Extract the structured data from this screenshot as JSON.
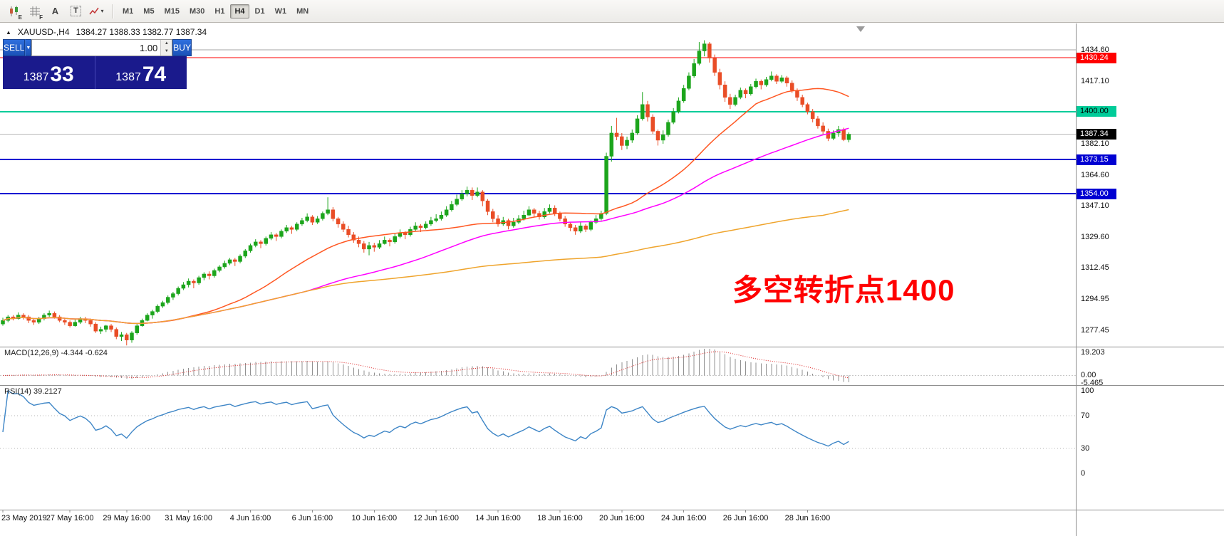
{
  "toolbar": {
    "icons": [
      {
        "name": "candlestick-chart-icon",
        "badge": "E"
      },
      {
        "name": "grid-icon",
        "badge": "F"
      },
      {
        "name": "cursor-tool-icon",
        "glyph": "A"
      },
      {
        "name": "text-tool-icon",
        "glyph": "T"
      },
      {
        "name": "indicators-dropdown-icon",
        "caret": "▾"
      }
    ],
    "timeframes": [
      "M1",
      "M5",
      "M15",
      "M30",
      "H1",
      "H4",
      "D1",
      "W1",
      "MN"
    ],
    "active_timeframe": "H4"
  },
  "symbol_bar": {
    "arrow": "▲",
    "title": "XAUUSD-,H4",
    "ohlc": "1384.27 1388.33 1382.77 1387.34"
  },
  "trade_panel": {
    "sell_label": "SELL",
    "buy_label": "BUY",
    "volume": "1.00",
    "dropdown_caret": "▼",
    "spin_up": "▲",
    "spin_down": "▼",
    "sell_price": {
      "base": "1387",
      "pips": "33"
    },
    "buy_price": {
      "base": "1387",
      "pips": "74"
    },
    "colors": {
      "button": "#1f5fce",
      "panel": "#1a1a8c"
    }
  },
  "annotation": {
    "text": "多空转折点1400",
    "color": "#ff0000"
  },
  "chart_data": {
    "type": "candlestick",
    "symbol": "XAUUSD",
    "timeframe": "H4",
    "candle_colors": {
      "bull": "#1ca51c",
      "bear": "#e94d26"
    },
    "price_axis": {
      "max": 1449.4,
      "min": 1268.3,
      "labels": [
        {
          "text": "1434.60",
          "value": 1434.6
        },
        {
          "text": "1417.10",
          "value": 1417.1
        },
        {
          "text": "1382.10",
          "value": 1382.1
        },
        {
          "text": "1364.60",
          "value": 1364.6
        },
        {
          "text": "1347.10",
          "value": 1347.1
        },
        {
          "text": "1329.60",
          "value": 1329.6
        },
        {
          "text": "1312.45",
          "value": 1312.45
        },
        {
          "text": "1294.95",
          "value": 1294.95
        },
        {
          "text": "1277.45",
          "value": 1277.45
        }
      ],
      "badges": [
        {
          "text": "1430.24",
          "value": 1430.24,
          "bg": "#ff0000",
          "fg": "#ffffff"
        },
        {
          "text": "1400.00",
          "value": 1400.0,
          "bg": "#00cc99",
          "fg": "#000000"
        },
        {
          "text": "1387.34",
          "value": 1387.34,
          "bg": "#000000",
          "fg": "#ffffff"
        },
        {
          "text": "1373.15",
          "value": 1373.15,
          "bg": "#0000d2",
          "fg": "#ffffff"
        },
        {
          "text": "1354.00",
          "value": 1354.0,
          "bg": "#0000d2",
          "fg": "#ffffff"
        }
      ]
    },
    "hlines": [
      {
        "value": 1434.6,
        "color": "#a6a6a6",
        "width": 1
      },
      {
        "value": 1430.24,
        "color": "#ff0000",
        "width": 1
      },
      {
        "value": 1400.0,
        "color": "#00cc99",
        "width": 2
      },
      {
        "value": 1387.34,
        "color": "#b9b9b9",
        "width": 1
      },
      {
        "value": 1373.15,
        "color": "#0000d2",
        "width": 2
      },
      {
        "value": 1354.0,
        "color": "#0000d2",
        "width": 2
      }
    ],
    "ma_lines": [
      {
        "name": "ma-fast",
        "period": 30,
        "color": "#ff5722"
      },
      {
        "name": "ma-mid",
        "period": 60,
        "color": "#ff00ff"
      },
      {
        "name": "ma-slow",
        "period": 160,
        "color": "#efa42c"
      }
    ],
    "time_ticks": [
      {
        "label": "23 May 2019",
        "i": 0
      },
      {
        "label": "27 May 16:00",
        "i": 13
      },
      {
        "label": "29 May 16:00",
        "i": 24
      },
      {
        "label": "31 May 16:00",
        "i": 36
      },
      {
        "label": "4 Jun 16:00",
        "i": 48
      },
      {
        "label": "6 Jun 16:00",
        "i": 60
      },
      {
        "label": "10 Jun 16:00",
        "i": 72
      },
      {
        "label": "12 Jun 16:00",
        "i": 84
      },
      {
        "label": "14 Jun 16:00",
        "i": 96
      },
      {
        "label": "18 Jun 16:00",
        "i": 108
      },
      {
        "label": "20 Jun 16:00",
        "i": 120
      },
      {
        "label": "24 Jun 16:00",
        "i": 132
      },
      {
        "label": "26 Jun 16:00",
        "i": 144
      },
      {
        "label": "28 Jun 16:00",
        "i": 156
      }
    ],
    "macd": {
      "label": "MACD(12,26,9)",
      "values_label": "-4.344 -0.624",
      "fast": 12,
      "slow": 26,
      "signal": 9,
      "histogram_color": "#909090",
      "signal_color": "#dd2222",
      "axis": {
        "max": 19.203,
        "min": -5.465,
        "labels": [
          "19.203",
          "0.00",
          "-5.465"
        ]
      }
    },
    "rsi": {
      "label": "RSI(14)",
      "value_label": "39.2127",
      "period": 14,
      "line_color": "#3d85c6",
      "level_line_color": "#b4b4b4",
      "levels": [
        100,
        70,
        30,
        0
      ]
    },
    "candles": [
      [
        1281,
        1284.5,
        1280,
        1283
      ],
      [
        1283,
        1286,
        1282,
        1285
      ],
      [
        1285,
        1286,
        1283,
        1284
      ],
      [
        1284,
        1287.5,
        1283.5,
        1286
      ],
      [
        1286,
        1287,
        1283.5,
        1285
      ],
      [
        1285,
        1286,
        1281.5,
        1283
      ],
      [
        1283,
        1284,
        1280.5,
        1282
      ],
      [
        1282,
        1285,
        1281,
        1284
      ],
      [
        1284,
        1287,
        1283,
        1286
      ],
      [
        1286,
        1288.5,
        1285,
        1287
      ],
      [
        1287,
        1288,
        1284,
        1285
      ],
      [
        1285,
        1286,
        1282,
        1283
      ],
      [
        1283,
        1284.5,
        1280.5,
        1282
      ],
      [
        1282,
        1283,
        1279,
        1280
      ],
      [
        1280,
        1283.5,
        1279.5,
        1282
      ],
      [
        1282,
        1285,
        1281,
        1284
      ],
      [
        1284,
        1285,
        1281.5,
        1283
      ],
      [
        1283,
        1284,
        1279.5,
        1281
      ],
      [
        1281,
        1282,
        1276,
        1277
      ],
      [
        1277,
        1279.5,
        1275.5,
        1278
      ],
      [
        1278,
        1280.5,
        1276.5,
        1280
      ],
      [
        1280,
        1281,
        1276.5,
        1278
      ],
      [
        1278,
        1279,
        1272.5,
        1274
      ],
      [
        1274,
        1276.5,
        1271.5,
        1275
      ],
      [
        1275,
        1276,
        1269,
        1272
      ],
      [
        1272,
        1277,
        1270.5,
        1276
      ],
      [
        1276,
        1281,
        1275,
        1280
      ],
      [
        1280,
        1284,
        1279.5,
        1283
      ],
      [
        1283,
        1287,
        1282.5,
        1286
      ],
      [
        1286,
        1289,
        1284,
        1288
      ],
      [
        1288,
        1292,
        1287,
        1291
      ],
      [
        1291,
        1294,
        1290,
        1293
      ],
      [
        1293,
        1297,
        1292,
        1296
      ],
      [
        1296,
        1299,
        1294.5,
        1298
      ],
      [
        1298,
        1302,
        1297,
        1301
      ],
      [
        1301,
        1304.5,
        1300,
        1303
      ],
      [
        1303,
        1306.5,
        1301.5,
        1305
      ],
      [
        1305,
        1306,
        1301,
        1304
      ],
      [
        1304,
        1308,
        1303,
        1307
      ],
      [
        1307,
        1310,
        1305.5,
        1309
      ],
      [
        1309,
        1310.5,
        1306,
        1308
      ],
      [
        1308,
        1312,
        1307,
        1311
      ],
      [
        1311,
        1314,
        1310,
        1313
      ],
      [
        1313,
        1316.5,
        1312,
        1315
      ],
      [
        1315,
        1318,
        1314,
        1317
      ],
      [
        1317,
        1318,
        1313.5,
        1316
      ],
      [
        1316,
        1320,
        1315,
        1319
      ],
      [
        1319,
        1323,
        1318,
        1322
      ],
      [
        1322,
        1326,
        1321,
        1325
      ],
      [
        1325,
        1328.5,
        1324,
        1327
      ],
      [
        1327,
        1328,
        1323.5,
        1326
      ],
      [
        1326,
        1330,
        1325,
        1329
      ],
      [
        1329,
        1332.5,
        1328,
        1331
      ],
      [
        1331,
        1332,
        1327.5,
        1330
      ],
      [
        1330,
        1334,
        1329,
        1333
      ],
      [
        1333,
        1336.5,
        1332,
        1335
      ],
      [
        1335,
        1336,
        1331.5,
        1334
      ],
      [
        1334,
        1338,
        1333,
        1337
      ],
      [
        1337,
        1340.5,
        1336,
        1339
      ],
      [
        1339,
        1343,
        1338,
        1341
      ],
      [
        1341,
        1342,
        1336.5,
        1338
      ],
      [
        1338,
        1341.5,
        1337,
        1340
      ],
      [
        1340,
        1344,
        1339,
        1343
      ],
      [
        1343,
        1352,
        1342,
        1345
      ],
      [
        1345,
        1346.5,
        1338.5,
        1340
      ],
      [
        1340,
        1341,
        1335,
        1337
      ],
      [
        1337,
        1338.5,
        1332.5,
        1334
      ],
      [
        1334,
        1336,
        1329.5,
        1331
      ],
      [
        1331,
        1332.5,
        1326.5,
        1328
      ],
      [
        1328,
        1330,
        1324,
        1326
      ],
      [
        1326,
        1327.5,
        1321,
        1323
      ],
      [
        1323,
        1327,
        1319.5,
        1325
      ],
      [
        1325,
        1326.5,
        1321.5,
        1324
      ],
      [
        1324,
        1328,
        1323,
        1326
      ],
      [
        1326,
        1330,
        1325.5,
        1328
      ],
      [
        1328,
        1329,
        1324.5,
        1327
      ],
      [
        1327,
        1331.5,
        1326,
        1330
      ],
      [
        1330,
        1334,
        1329,
        1332
      ],
      [
        1332,
        1333,
        1328.5,
        1331
      ],
      [
        1331,
        1335.5,
        1330,
        1334
      ],
      [
        1334,
        1338,
        1333,
        1336
      ],
      [
        1336,
        1337,
        1332.5,
        1335
      ],
      [
        1335,
        1338.5,
        1334,
        1337
      ],
      [
        1337,
        1341,
        1336,
        1339
      ],
      [
        1339,
        1342.5,
        1338,
        1340
      ],
      [
        1340,
        1344,
        1339,
        1342
      ],
      [
        1342,
        1347,
        1341,
        1345
      ],
      [
        1345,
        1350,
        1344,
        1348
      ],
      [
        1348,
        1353.5,
        1347,
        1351
      ],
      [
        1351,
        1356,
        1350,
        1354
      ],
      [
        1354,
        1358,
        1352.5,
        1356
      ],
      [
        1356,
        1357.5,
        1350.5,
        1353
      ],
      [
        1353,
        1357.5,
        1352,
        1355
      ],
      [
        1355,
        1356,
        1347,
        1350
      ],
      [
        1350,
        1351,
        1342,
        1344
      ],
      [
        1344,
        1345.5,
        1338,
        1340
      ],
      [
        1340,
        1342,
        1335.5,
        1337
      ],
      [
        1337,
        1341,
        1336,
        1339
      ],
      [
        1339,
        1340,
        1334,
        1336
      ],
      [
        1336,
        1340.5,
        1335,
        1338
      ],
      [
        1338,
        1342,
        1337,
        1340
      ],
      [
        1340,
        1344.5,
        1339,
        1342
      ],
      [
        1342,
        1347,
        1341.5,
        1345
      ],
      [
        1345,
        1346,
        1341,
        1343
      ],
      [
        1343,
        1344.5,
        1339.5,
        1341
      ],
      [
        1341,
        1346,
        1340,
        1344
      ],
      [
        1344,
        1348,
        1343,
        1346
      ],
      [
        1346,
        1347.5,
        1341.5,
        1343
      ],
      [
        1343,
        1344,
        1338.5,
        1340
      ],
      [
        1340,
        1341.5,
        1335.5,
        1337
      ],
      [
        1337,
        1338,
        1333,
        1335
      ],
      [
        1335,
        1336.5,
        1331,
        1333
      ],
      [
        1333,
        1338,
        1332,
        1336
      ],
      [
        1336,
        1337,
        1332.5,
        1334
      ],
      [
        1334,
        1339,
        1333,
        1338
      ],
      [
        1338,
        1342,
        1337,
        1340
      ],
      [
        1340,
        1344.5,
        1339,
        1343
      ],
      [
        1343,
        1377,
        1342,
        1375
      ],
      [
        1375,
        1392,
        1372,
        1388
      ],
      [
        1388,
        1396.5,
        1384,
        1386
      ],
      [
        1386,
        1388,
        1378.5,
        1381
      ],
      [
        1381,
        1386,
        1379,
        1384
      ],
      [
        1384,
        1390,
        1382.5,
        1388
      ],
      [
        1388,
        1398,
        1387,
        1396
      ],
      [
        1396,
        1411,
        1395,
        1404
      ],
      [
        1404,
        1406,
        1394.5,
        1397
      ],
      [
        1397,
        1398.5,
        1387.5,
        1389
      ],
      [
        1389,
        1390,
        1381,
        1384
      ],
      [
        1384,
        1389.5,
        1382,
        1387
      ],
      [
        1387,
        1395.5,
        1386,
        1394
      ],
      [
        1394,
        1402,
        1393,
        1400
      ],
      [
        1400,
        1408,
        1399,
        1406
      ],
      [
        1406,
        1415,
        1405,
        1413
      ],
      [
        1413,
        1422,
        1412,
        1420
      ],
      [
        1420,
        1429.5,
        1419,
        1427
      ],
      [
        1427,
        1439,
        1426,
        1434
      ],
      [
        1434,
        1440,
        1431,
        1438
      ],
      [
        1438,
        1439,
        1427.5,
        1430
      ],
      [
        1430,
        1432,
        1420,
        1422
      ],
      [
        1422,
        1424,
        1412.5,
        1415
      ],
      [
        1415,
        1417,
        1405.5,
        1408
      ],
      [
        1408,
        1410,
        1401.5,
        1404
      ],
      [
        1404,
        1409.5,
        1403,
        1408
      ],
      [
        1408,
        1413.5,
        1407,
        1412
      ],
      [
        1412,
        1413,
        1407.5,
        1410
      ],
      [
        1410,
        1415.5,
        1409,
        1414
      ],
      [
        1414,
        1418.5,
        1413,
        1417
      ],
      [
        1417,
        1418,
        1412.5,
        1415
      ],
      [
        1415,
        1419.5,
        1414,
        1418
      ],
      [
        1418,
        1422.5,
        1417,
        1420
      ],
      [
        1420,
        1421,
        1415.5,
        1417
      ],
      [
        1417,
        1420.5,
        1416,
        1419
      ],
      [
        1419,
        1420,
        1414,
        1416
      ],
      [
        1416,
        1417.5,
        1410.5,
        1412
      ],
      [
        1412,
        1413,
        1406,
        1408
      ],
      [
        1408,
        1409.5,
        1402.5,
        1404
      ],
      [
        1404,
        1405,
        1398.5,
        1400
      ],
      [
        1400,
        1401.5,
        1394,
        1396
      ],
      [
        1396,
        1397.5,
        1390.5,
        1392
      ],
      [
        1392,
        1394,
        1387.5,
        1389
      ],
      [
        1389,
        1390.5,
        1383.5,
        1385
      ],
      [
        1385,
        1389.5,
        1384,
        1388
      ],
      [
        1388,
        1392,
        1386,
        1390
      ],
      [
        1390,
        1391,
        1383.5,
        1384.3
      ],
      [
        1384.27,
        1388.33,
        1382.77,
        1387.34
      ]
    ]
  }
}
